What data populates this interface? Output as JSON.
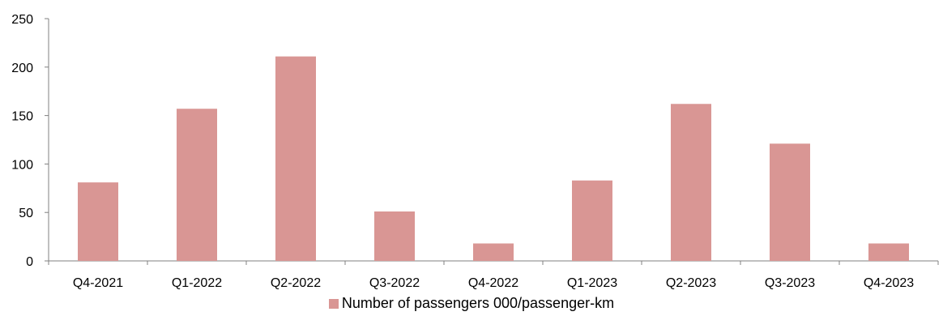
{
  "chart_data": {
    "type": "bar",
    "categories": [
      "Q4-2021",
      "Q1-2022",
      "Q2-2022",
      "Q3-2022",
      "Q4-2022",
      "Q1-2023",
      "Q2-2023",
      "Q3-2023",
      "Q4-2023"
    ],
    "series": [
      {
        "name": "Number of passengers 000/passenger-km",
        "values": [
          81,
          157,
          211,
          51,
          18,
          83,
          162,
          121,
          18
        ]
      }
    ],
    "ylim": [
      0,
      250
    ],
    "yticks": [
      "0",
      "50",
      "100",
      "150",
      "200",
      "250"
    ],
    "xlabel": "",
    "ylabel": "",
    "grid": false,
    "legend_position": "bottom",
    "bar_color": "#d99694",
    "axis_color": "#808080"
  }
}
